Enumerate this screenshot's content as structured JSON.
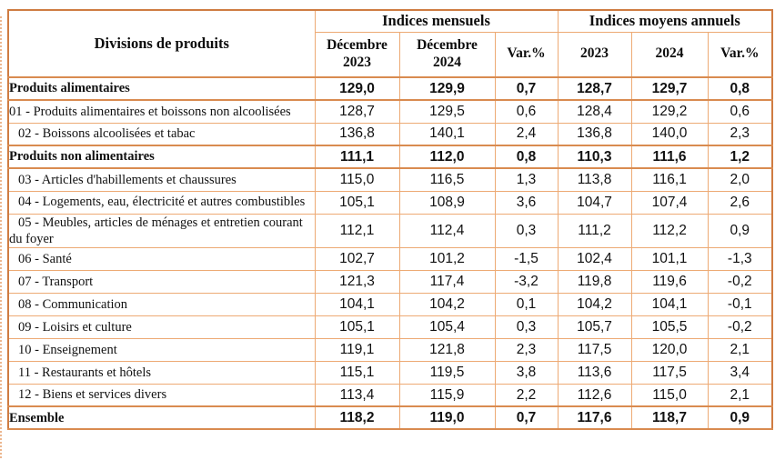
{
  "table": {
    "header": {
      "divisions": "Divisions de produits",
      "group_monthly": "Indices mensuels",
      "group_annual": "Indices moyens annuels",
      "col_dec_2023": "Décembre 2023",
      "col_dec_2024": "Décembre 2024",
      "col_var_monthly": "Var.%",
      "col_2023": "2023",
      "col_2024": "2024",
      "col_var_annual": "Var.%"
    },
    "rows": [
      {
        "label": "Produits alimentaires",
        "bold": true,
        "indent": false,
        "values": [
          "129,0",
          "129,9",
          "0,7",
          "128,7",
          "129,7",
          "0,8"
        ]
      },
      {
        "label": "01 - Produits alimentaires et boissons non alcoolisées",
        "bold": false,
        "indent": false,
        "values": [
          "128,7",
          "129,5",
          "0,6",
          "128,4",
          "129,2",
          "0,6"
        ]
      },
      {
        "label": "02 - Boissons alcoolisées et tabac",
        "bold": false,
        "indent": true,
        "values": [
          "136,8",
          "140,1",
          "2,4",
          "136,8",
          "140,0",
          "2,3"
        ]
      },
      {
        "label": "Produits non alimentaires",
        "bold": true,
        "indent": false,
        "values": [
          "111,1",
          "112,0",
          "0,8",
          "110,3",
          "111,6",
          "1,2"
        ]
      },
      {
        "label": "03 - Articles d'habillements et chaussures",
        "bold": false,
        "indent": true,
        "values": [
          "115,0",
          "116,5",
          "1,3",
          "113,8",
          "116,1",
          "2,0"
        ]
      },
      {
        "label": "04 - Logements, eau, électricité et autres combustibles",
        "bold": false,
        "indent": true,
        "values": [
          "105,1",
          "108,9",
          "3,6",
          "104,7",
          "107,4",
          "2,6"
        ]
      },
      {
        "label": "05 - Meubles, articles de ménages et entretien courant du foyer",
        "bold": false,
        "indent": true,
        "values": [
          "112,1",
          "112,4",
          "0,3",
          "111,2",
          "112,2",
          "0,9"
        ]
      },
      {
        "label": "06 - Santé",
        "bold": false,
        "indent": true,
        "values": [
          "102,7",
          "101,2",
          "-1,5",
          "102,4",
          "101,1",
          "-1,3"
        ]
      },
      {
        "label": "07 - Transport",
        "bold": false,
        "indent": true,
        "values": [
          "121,3",
          "117,4",
          "-3,2",
          "119,8",
          "119,6",
          "-0,2"
        ]
      },
      {
        "label": "08 - Communication",
        "bold": false,
        "indent": true,
        "values": [
          "104,1",
          "104,2",
          "0,1",
          "104,2",
          "104,1",
          "-0,1"
        ]
      },
      {
        "label": "09 - Loisirs et culture",
        "bold": false,
        "indent": true,
        "values": [
          "105,1",
          "105,4",
          "0,3",
          "105,7",
          "105,5",
          "-0,2"
        ]
      },
      {
        "label": "10 - Enseignement",
        "bold": false,
        "indent": true,
        "values": [
          "119,1",
          "121,8",
          "2,3",
          "117,5",
          "120,0",
          "2,1"
        ]
      },
      {
        "label": "11 - Restaurants et hôtels",
        "bold": false,
        "indent": true,
        "values": [
          "115,1",
          "119,5",
          "3,8",
          "113,6",
          "117,5",
          "3,4"
        ]
      },
      {
        "label": "12 - Biens et services divers",
        "bold": false,
        "indent": true,
        "values": [
          "113,4",
          "115,9",
          "2,2",
          "112,6",
          "115,0",
          "2,1"
        ]
      },
      {
        "label": "Ensemble",
        "bold": true,
        "indent": false,
        "values": [
          "118,2",
          "119,0",
          "0,7",
          "117,6",
          "118,7",
          "0,9"
        ]
      }
    ]
  },
  "colors": {
    "border_light": "#edaa74",
    "border_dark": "#cf7c42",
    "text": "#111111",
    "background": "#ffffff"
  }
}
